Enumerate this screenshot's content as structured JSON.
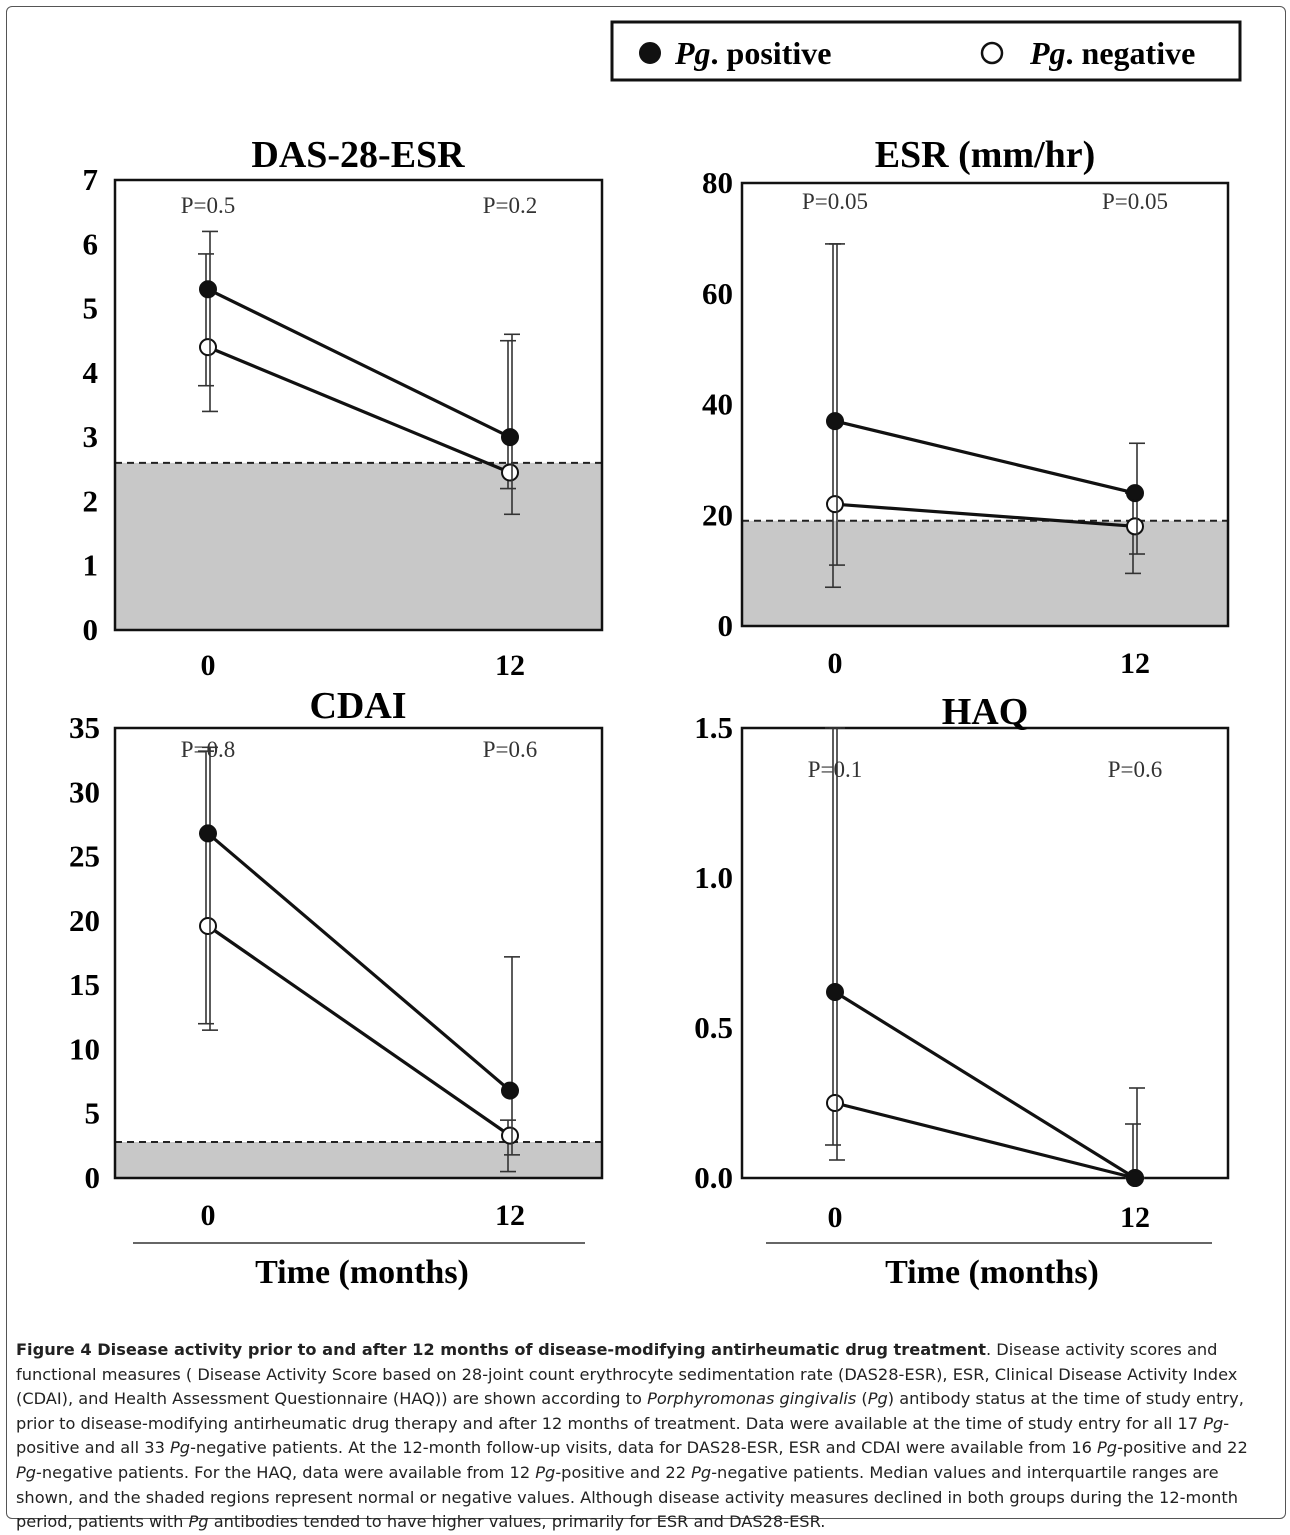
{
  "legend": {
    "positive": "Pg. positive",
    "negative": "Pg. negative"
  },
  "x_axis_title": "Time (months)",
  "chart_data": [
    {
      "type": "line",
      "title": "DAS-28-ESR",
      "x": [
        0,
        12
      ],
      "ylim": [
        0,
        7
      ],
      "yticks": [
        "0",
        "1",
        "2",
        "3",
        "4",
        "5",
        "6",
        "7"
      ],
      "ytick_values": [
        0,
        1,
        2,
        3,
        4,
        5,
        6,
        7
      ],
      "xticks": [
        "0",
        "12"
      ],
      "pvalues": [
        "P=0.5",
        "P=0.2"
      ],
      "shade_below": 2.6,
      "series": [
        {
          "name": "Pg. positive",
          "values": [
            5.3,
            3.0
          ],
          "err_low": [
            3.4,
            1.8
          ],
          "err_high": [
            6.2,
            4.6
          ]
        },
        {
          "name": "Pg. negative",
          "values": [
            4.4,
            2.45
          ],
          "err_low": [
            3.8,
            2.2
          ],
          "err_high": [
            5.85,
            4.5
          ]
        }
      ]
    },
    {
      "type": "line",
      "title": "ESR (mm/hr)",
      "x": [
        0,
        12
      ],
      "ylim": [
        0,
        80
      ],
      "yticks": [
        "0",
        "20",
        "40",
        "60",
        "80"
      ],
      "ytick_values": [
        0,
        20,
        40,
        60,
        80
      ],
      "xticks": [
        "0",
        "12"
      ],
      "pvalues": [
        "P=0.05",
        "P=0.05"
      ],
      "shade_below": 19,
      "series": [
        {
          "name": "Pg. positive",
          "values": [
            37,
            24
          ],
          "err_low": [
            11,
            13
          ],
          "err_high": [
            69,
            33
          ]
        },
        {
          "name": "Pg. negative",
          "values": [
            22,
            18
          ],
          "err_low": [
            7,
            9.5
          ],
          "err_high": [
            69,
            24
          ]
        }
      ]
    },
    {
      "type": "line",
      "title": "CDAI",
      "x": [
        0,
        12
      ],
      "ylim": [
        0,
        35
      ],
      "yticks": [
        "0",
        "5",
        "10",
        "15",
        "20",
        "25",
        "30",
        "35"
      ],
      "ytick_values": [
        0,
        5,
        10,
        15,
        20,
        25,
        30,
        35
      ],
      "xticks": [
        "0",
        "12"
      ],
      "pvalues": [
        "P=0.8",
        "P=0.6"
      ],
      "shade_below": 2.8,
      "series": [
        {
          "name": "Pg. positive",
          "values": [
            26.8,
            6.8
          ],
          "err_low": [
            11.5,
            1.8
          ],
          "err_high": [
            33.5,
            17.2
          ]
        },
        {
          "name": "Pg. negative",
          "values": [
            19.6,
            3.3
          ],
          "err_low": [
            12,
            0.5
          ],
          "err_high": [
            33.2,
            4.5
          ]
        }
      ]
    },
    {
      "type": "line",
      "title": "HAQ",
      "x": [
        0,
        12
      ],
      "ylim": [
        0,
        1.5
      ],
      "yticks": [
        "0.0",
        "0.5",
        "1.0",
        "1.5"
      ],
      "ytick_values": [
        0,
        0.5,
        1.0,
        1.5
      ],
      "xticks": [
        "0",
        "12"
      ],
      "pvalues": [
        "P=0.1",
        "P=0.6"
      ],
      "shade_below": null,
      "series": [
        {
          "name": "Pg. positive",
          "values": [
            0.62,
            0.0
          ],
          "err_low": [
            0.06,
            0.0
          ],
          "err_high": [
            1.5,
            0.3
          ]
        },
        {
          "name": "Pg. negative",
          "values": [
            0.25,
            0.0
          ],
          "err_low": [
            0.11,
            0.0
          ],
          "err_high": [
            1.5,
            0.18
          ]
        }
      ]
    }
  ],
  "caption": {
    "label": "Figure 4 Disease activity prior to and after 12 months of disease-modifying antirheumatic drug treatment",
    "segments": [
      {
        "t": ". Disease activity scores and functional measures ( Disease Activity Score based on 28-joint count erythrocyte sedimentation rate (DAS28-ESR), ESR, Clinical Disease Activity Index (CDAI), and Health Assessment Questionnaire (HAQ)) are shown according to ",
        "i": false
      },
      {
        "t": "Porphyromonas gingivalis",
        "i": true
      },
      {
        "t": " (",
        "i": false
      },
      {
        "t": "Pg",
        "i": true
      },
      {
        "t": ") antibody status at the time of study entry, prior to disease-modifying antirheumatic drug therapy and after 12 months of treatment. Data were available at the time of study entry for all 17 ",
        "i": false
      },
      {
        "t": "Pg",
        "i": true
      },
      {
        "t": "-positive and all 33 ",
        "i": false
      },
      {
        "t": "Pg",
        "i": true
      },
      {
        "t": "-negative patients. At the 12-month follow-up visits, data for DAS28-ESR, ESR and CDAI were available from 16 ",
        "i": false
      },
      {
        "t": "Pg",
        "i": true
      },
      {
        "t": "-positive and 22 ",
        "i": false
      },
      {
        "t": "Pg",
        "i": true
      },
      {
        "t": "-negative patients. For the HAQ, data were available from 12 ",
        "i": false
      },
      {
        "t": "Pg",
        "i": true
      },
      {
        "t": "-positive and 22 ",
        "i": false
      },
      {
        "t": "Pg",
        "i": true
      },
      {
        "t": "-negative patients. Median values and interquartile ranges are shown, and the shaded regions represent normal or negative values. Although disease activity measures declined in both groups during the 12-month period, patients with ",
        "i": false
      },
      {
        "t": "Pg",
        "i": true
      },
      {
        "t": " antibodies tended to have higher values, primarily for ESR and DAS28-ESR.",
        "i": false
      }
    ]
  }
}
